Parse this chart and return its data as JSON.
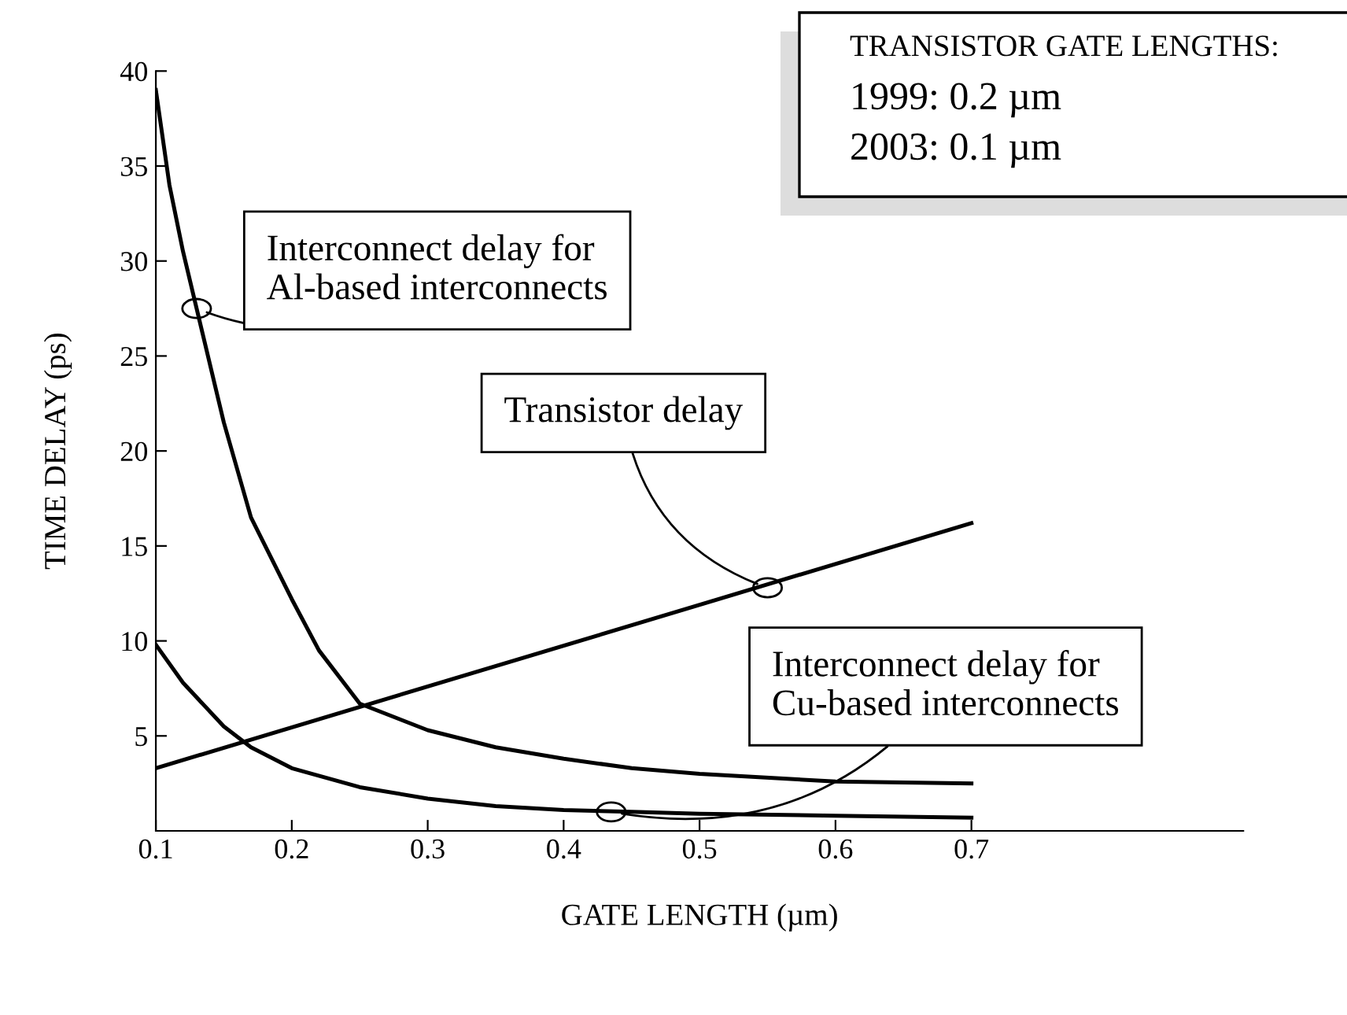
{
  "chart_data": {
    "type": "line",
    "xlabel": "GATE LENGTH (µm)",
    "ylabel": "TIME DELAY (ps)",
    "xlim": [
      0.1,
      0.9
    ],
    "xticks": [
      0.1,
      0.2,
      0.3,
      0.4,
      0.5,
      0.6,
      0.7
    ],
    "ylim": [
      0,
      40
    ],
    "yticks": [
      5,
      10,
      15,
      20,
      25,
      30,
      35,
      40
    ],
    "grid": false,
    "legend": false,
    "marker": "none",
    "line_style": "solid",
    "series": [
      {
        "color": "#000000",
        "x": [
          0.1,
          0.11,
          0.12,
          0.13,
          0.15,
          0.17,
          0.2,
          0.22,
          0.25,
          0.3,
          0.35,
          0.4,
          0.45,
          0.5,
          0.6,
          0.7
        ],
        "values": [
          39,
          34,
          30.5,
          27.5,
          21.5,
          16.5,
          12.2,
          9.5,
          6.7,
          5.3,
          4.4,
          3.8,
          3.3,
          3.0,
          2.6,
          2.5
        ]
      },
      {
        "color": "#000000",
        "x": [
          0.1,
          0.12,
          0.15,
          0.17,
          0.2,
          0.25,
          0.3,
          0.35,
          0.4,
          0.45,
          0.5,
          0.6,
          0.7
        ],
        "values": [
          9.8,
          7.8,
          5.5,
          4.4,
          3.3,
          2.3,
          1.7,
          1.3,
          1.1,
          1.0,
          0.9,
          0.8,
          0.7
        ]
      },
      {
        "color": "#000000",
        "x": [
          0.1,
          0.7
        ],
        "values": [
          3.3,
          16.2
        ]
      }
    ],
    "annotations": [
      {
        "text": "Interconnect delay for\nAl-based interconnects",
        "x": 0.13,
        "y": 27.5
      },
      {
        "text": "Transistor delay",
        "x": 0.55,
        "y": 12.8
      },
      {
        "text": "Interconnect delay for\nCu-based interconnects",
        "x": 0.435,
        "y": 1.0
      },
      "TRANSISTOR GATE LENGTHS:\n1999: 0.2 µm\n2003: 0.1 µm"
    ]
  }
}
